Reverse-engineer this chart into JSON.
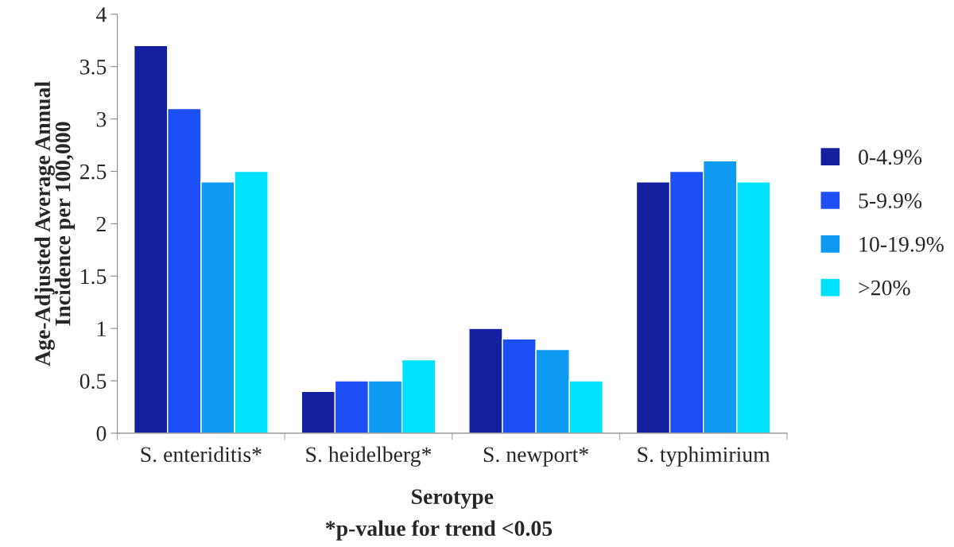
{
  "chart_data": {
    "type": "bar",
    "categories": [
      "S. enteriditis*",
      "S. heidelberg*",
      "S. newport*",
      "S. typhimirium"
    ],
    "series": [
      {
        "name": "0-4.9%",
        "color": "#141fa0",
        "values": [
          3.7,
          0.4,
          1.0,
          2.4
        ]
      },
      {
        "name": "5-9.9%",
        "color": "#1c4ff5",
        "values": [
          3.1,
          0.5,
          0.9,
          2.5
        ]
      },
      {
        "name": "10-19.9%",
        "color": "#0f9af2",
        "values": [
          2.4,
          0.5,
          0.8,
          2.6
        ]
      },
      {
        "name": ">20%",
        "color": "#00e1fb",
        "values": [
          2.5,
          0.7,
          0.5,
          2.4
        ]
      }
    ],
    "xlabel": "Serotype",
    "ylabel": "Age-Adjusted Average Annual\nIncidence per 100,000",
    "annotations": [
      "*p-value for trend <0.05"
    ],
    "ylim": [
      0,
      4
    ],
    "yticks": [
      0,
      0.5,
      1,
      1.5,
      2,
      2.5,
      3,
      3.5,
      4
    ],
    "grid": false,
    "legend": "right"
  }
}
